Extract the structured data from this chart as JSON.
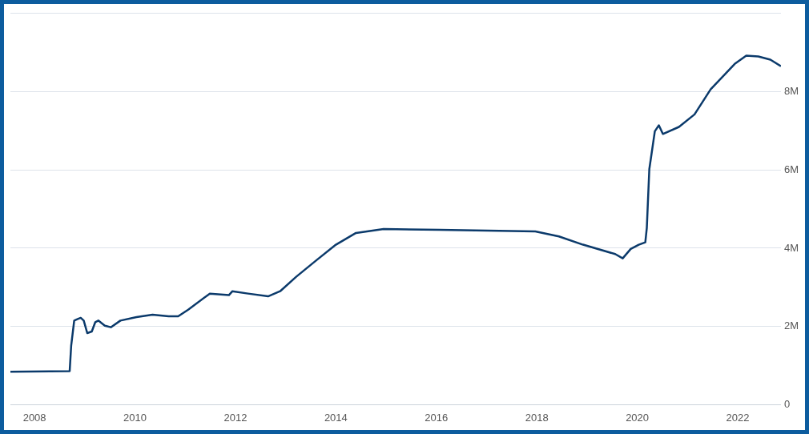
{
  "chart_data": {
    "type": "line",
    "x": [
      2007.52,
      2008.7,
      2008.73,
      2008.79,
      2008.86,
      2008.92,
      2008.98,
      2009.05,
      2009.14,
      2009.21,
      2009.27,
      2009.4,
      2009.52,
      2009.71,
      2010.03,
      2010.35,
      2010.67,
      2010.86,
      2011.06,
      2011.49,
      2011.87,
      2011.94,
      2012.25,
      2012.65,
      2012.89,
      2013.21,
      2013.6,
      2014.0,
      2014.4,
      2014.95,
      2016.06,
      2017.97,
      2018.44,
      2018.92,
      2019.56,
      2019.71,
      2019.87,
      2020.03,
      2020.16,
      2020.19,
      2020.24,
      2020.35,
      2020.43,
      2020.51,
      2020.83,
      2021.14,
      2021.46,
      2021.94,
      2022.17,
      2022.41,
      2022.65,
      2022.86
    ],
    "series": [
      {
        "color": "#0b3a6b",
        "values": [
          0.84,
          0.86,
          1.51,
          2.15,
          2.19,
          2.22,
          2.15,
          1.83,
          1.87,
          2.11,
          2.15,
          2.02,
          1.98,
          2.15,
          2.24,
          2.3,
          2.26,
          2.26,
          2.43,
          2.84,
          2.8,
          2.9,
          2.84,
          2.77,
          2.9,
          3.27,
          3.68,
          4.09,
          4.39,
          4.49,
          4.47,
          4.43,
          4.3,
          4.09,
          3.85,
          3.74,
          3.98,
          4.09,
          4.15,
          4.52,
          6.02,
          6.99,
          7.14,
          6.92,
          7.1,
          7.42,
          8.06,
          8.71,
          8.92,
          8.9,
          8.82,
          8.65
        ]
      }
    ],
    "xlim": [
      2007.52,
      2022.86
    ],
    "xticks": [
      2008,
      2010,
      2012,
      2014,
      2016,
      2018,
      2020,
      2022
    ],
    "ylim": [
      0,
      10
    ],
    "yticks": [
      {
        "value": 0,
        "label": "0"
      },
      {
        "value": 2,
        "label": "2M"
      },
      {
        "value": 4,
        "label": "4M"
      },
      {
        "value": 6,
        "label": "6M"
      },
      {
        "value": 8,
        "label": "8M"
      },
      {
        "value": 10,
        "label": null
      }
    ],
    "grid": "y",
    "legend": false,
    "marker": "none",
    "line_style": "solid"
  }
}
